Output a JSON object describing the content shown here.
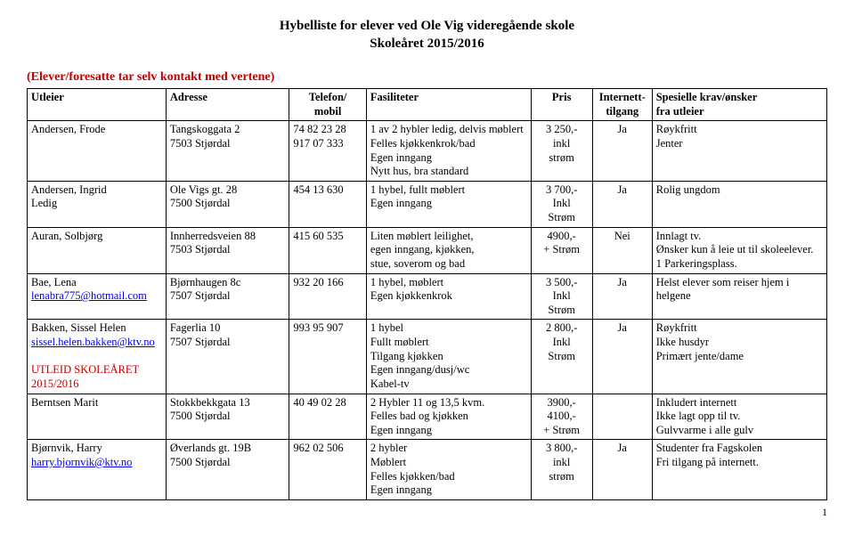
{
  "title_line1": "Hybelliste for elever ved Ole Vig videregående skole",
  "title_line2": "Skoleåret 2015/2016",
  "subtitle": "(Elever/foresatte tar selv kontakt med vertene)",
  "columns": {
    "utleier": "Utleier",
    "adresse": "Adresse",
    "telefon": "Telefon/\nmobil",
    "fasiliteter": "Fasiliteter",
    "pris": "Pris",
    "internett": "Internett-\ntilgang",
    "krav": "Spesielle krav/ønsker\nfra utleier"
  },
  "rows": [
    {
      "utleier": "Andersen, Frode",
      "adresse": "Tangskoggata 2\n7503 Stjørdal",
      "telefon": "74 82 23 28\n917 07 333",
      "fasiliteter": "1 av 2 hybler ledig, delvis møblert\nFelles kjøkkenkrok/bad\nEgen inngang\nNytt hus, bra standard",
      "pris": "3 250,-\ninkl\nstrøm",
      "internett": "Ja",
      "krav": "Røykfritt\nJenter"
    },
    {
      "utleier": "Andersen, Ingrid\nLedig",
      "adresse": "Ole Vigs gt. 28\n7500 Stjørdal",
      "telefon": "454 13 630",
      "fasiliteter": "1 hybel, fullt møblert\nEgen inngang",
      "pris": "3 700,-\nInkl\nStrøm",
      "internett": "Ja",
      "krav": "Rolig ungdom"
    },
    {
      "utleier": "Auran, Solbjørg",
      "adresse": "Innherredsveien 88\n7503 Stjørdal",
      "telefon": "415 60 535",
      "fasiliteter": "Liten møblert leilighet,\negen inngang, kjøkken,\nstue, soverom og bad",
      "pris": "4900,-\n+ Strøm",
      "internett": "Nei",
      "krav": "Innlagt tv.\nØnsker kun å leie ut til skoleelever.\n1 Parkeringsplass."
    },
    {
      "utleier_name": "Bae, Lena",
      "utleier_link": "lenabra775@hotmail.com",
      "adresse": "Bjørnhaugen 8c\n7507 Stjørdal",
      "telefon": "932 20 166",
      "fasiliteter": "1 hybel, møblert\nEgen kjøkkenkrok",
      "pris": "3 500,-\nInkl\nStrøm",
      "internett": "Ja",
      "krav": "Helst elever som reiser hjem i helgene"
    },
    {
      "utleier_name": "Bakken, Sissel Helen",
      "utleier_link": "sissel.helen.bakken@ktv.no",
      "utleier_red": "UTLEID SKOLEÅRET 2015/2016",
      "adresse": "Fagerlia 10\n7507 Stjørdal",
      "telefon": "993 95 907",
      "fasiliteter": "1 hybel\nFullt møblert\nTilgang kjøkken\nEgen inngang/dusj/wc\nKabel-tv",
      "pris": "2 800,-\nInkl\nStrøm",
      "internett": "Ja",
      "krav": "Røykfritt\nIkke husdyr\nPrimært jente/dame"
    },
    {
      "utleier": "Berntsen Marit",
      "adresse": "Stokkbekkgata 13\n7500 Stjørdal",
      "telefon": "40 49 02 28",
      "fasiliteter": "2 Hybler 11 og 13,5 kvm.\nFelles bad og kjøkken\nEgen inngang",
      "pris": "3900,-\n4100,-\n+ Strøm",
      "internett": "",
      "krav": "Inkludert internett\nIkke lagt opp til tv.\nGulvvarme i alle gulv"
    },
    {
      "utleier_name": "Bjørnvik, Harry",
      "utleier_link": "harry.bjornvik@ktv.no",
      "adresse": "Øverlands gt. 19B\n7500 Stjørdal",
      "telefon": "962 02 506",
      "fasiliteter": "2 hybler\nMøblert\nFelles kjøkken/bad\nEgen inngang",
      "pris": "3 800,-\ninkl\nstrøm",
      "internett": "Ja",
      "krav": "Studenter fra Fagskolen\nFri tilgang på internett."
    }
  ],
  "page_number": "1"
}
